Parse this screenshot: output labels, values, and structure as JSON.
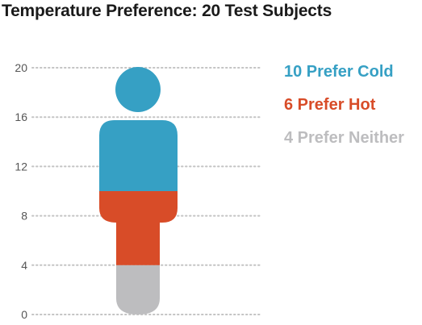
{
  "chart_data": {
    "type": "bar",
    "title": "Temperature Preference: 20 Test Subjects",
    "ylim": [
      0,
      20
    ],
    "yticks": [
      0,
      4,
      8,
      12,
      16,
      20
    ],
    "grid": true,
    "legend_placement": "top-right",
    "series": [
      {
        "name": "Prefer Neither",
        "value": 4,
        "color": "#bdbdbf"
      },
      {
        "name": "Prefer Hot",
        "value": 6,
        "color": "#d84c28"
      },
      {
        "name": "Prefer Cold",
        "value": 10,
        "color": "#36a0c4"
      }
    ],
    "legend": [
      {
        "label": "10 Prefer Cold",
        "color": "#36a0c4"
      },
      {
        "label": "6 Prefer Hot",
        "color": "#d84c28"
      },
      {
        "label": "4 Prefer Neither",
        "color": "#bdbdbf"
      }
    ]
  }
}
